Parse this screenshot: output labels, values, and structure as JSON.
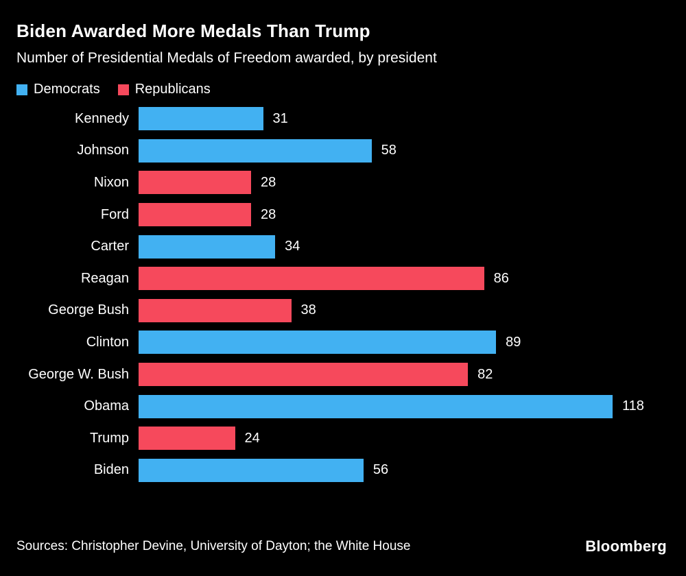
{
  "header": {
    "title": "Biden Awarded More Medals Than Trump",
    "subtitle": "Number of Presidential Medals of Freedom awarded, by president"
  },
  "legend": [
    {
      "label": "Democrats",
      "color": "#42b1f2"
    },
    {
      "label": "Republicans",
      "color": "#f6495c"
    }
  ],
  "chart_data": {
    "type": "bar",
    "orientation": "horizontal",
    "title": "Biden Awarded More Medals Than Trump",
    "subtitle": "Number of Presidential Medals of Freedom awarded, by president",
    "categories": [
      "Kennedy",
      "Johnson",
      "Nixon",
      "Ford",
      "Carter",
      "Reagan",
      "George Bush",
      "Clinton",
      "George W. Bush",
      "Obama",
      "Trump",
      "Biden"
    ],
    "values": [
      31,
      58,
      28,
      28,
      34,
      86,
      38,
      89,
      82,
      118,
      24,
      56
    ],
    "parties": [
      "D",
      "D",
      "R",
      "R",
      "D",
      "R",
      "R",
      "D",
      "R",
      "D",
      "R",
      "D"
    ],
    "colors": {
      "D": "#42b1f2",
      "R": "#f6495c"
    },
    "xlim": [
      0,
      118
    ],
    "xlabel": "",
    "ylabel": "",
    "grid": false,
    "legend_position": "top",
    "value_labels": true
  },
  "footer": {
    "sources": "Sources: Christopher Devine, University of Dayton; the White House",
    "brand": "Bloomberg"
  }
}
